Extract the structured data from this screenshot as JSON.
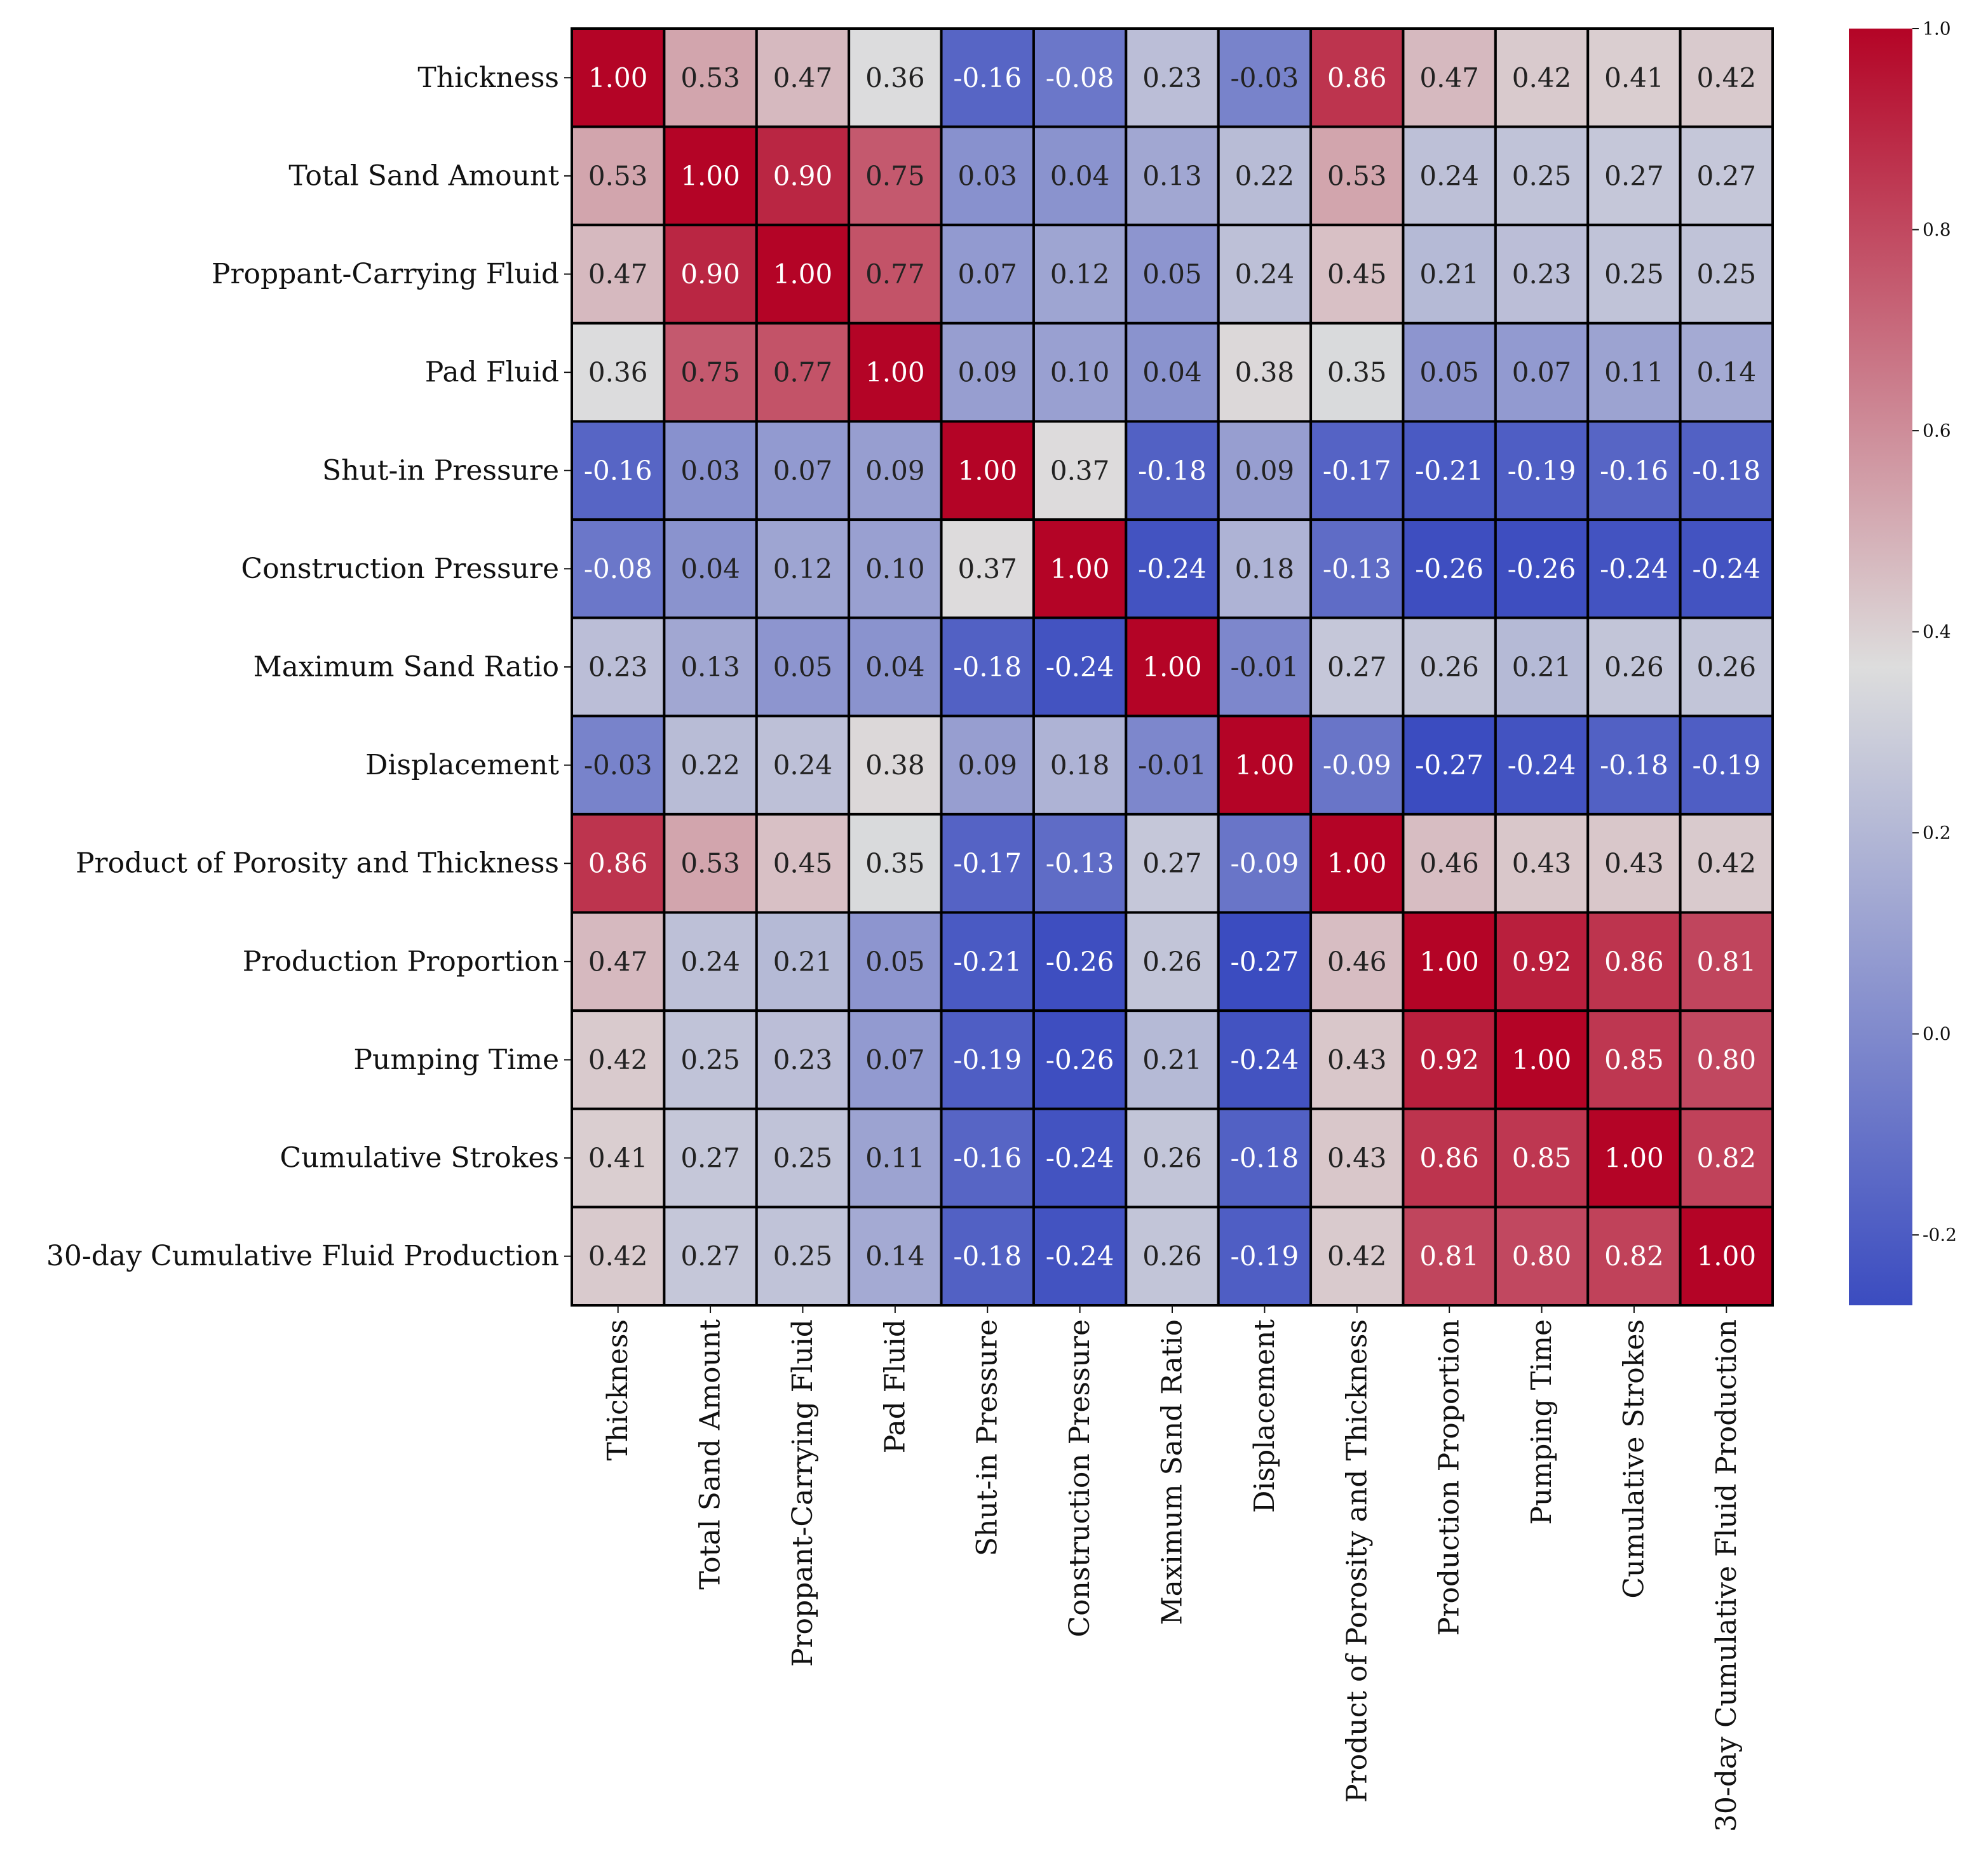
{
  "chart_data": {
    "type": "heatmap",
    "title": "",
    "xlabel": "",
    "ylabel": "",
    "value_format": "2 decimals",
    "colormap": "coolwarm",
    "color_low": "#3b4cc0",
    "color_mid": "#dddddd",
    "color_high": "#b40426",
    "grid_line_color": "#000000",
    "vmin": -0.27,
    "vmax": 1.0,
    "labels": [
      "Thickness",
      "Total Sand Amount",
      "Proppant-Carrying Fluid",
      "Pad Fluid",
      "Shut-in Pressure",
      "Construction Pressure",
      "Maximum Sand Ratio",
      "Displacement",
      "Product of Porosity and Thickness",
      "Production Proportion",
      "Pumping Time",
      "Cumulative Strokes",
      "30-day Cumulative Fluid Production"
    ],
    "matrix": [
      [
        1.0,
        0.53,
        0.47,
        0.36,
        -0.16,
        -0.08,
        0.23,
        -0.03,
        0.86,
        0.47,
        0.42,
        0.41,
        0.42
      ],
      [
        0.53,
        1.0,
        0.9,
        0.75,
        0.03,
        0.04,
        0.13,
        0.22,
        0.53,
        0.24,
        0.25,
        0.27,
        0.27
      ],
      [
        0.47,
        0.9,
        1.0,
        0.77,
        0.07,
        0.12,
        0.05,
        0.24,
        0.45,
        0.21,
        0.23,
        0.25,
        0.25
      ],
      [
        0.36,
        0.75,
        0.77,
        1.0,
        0.09,
        0.1,
        0.04,
        0.38,
        0.35,
        0.05,
        0.07,
        0.11,
        0.14
      ],
      [
        -0.16,
        0.03,
        0.07,
        0.09,
        1.0,
        0.37,
        -0.18,
        0.09,
        -0.17,
        -0.21,
        -0.19,
        -0.16,
        -0.18
      ],
      [
        -0.08,
        0.04,
        0.12,
        0.1,
        0.37,
        1.0,
        -0.24,
        0.18,
        -0.13,
        -0.26,
        -0.26,
        -0.24,
        -0.24
      ],
      [
        0.23,
        0.13,
        0.05,
        0.04,
        -0.18,
        -0.24,
        1.0,
        -0.01,
        0.27,
        0.26,
        0.21,
        0.26,
        0.26
      ],
      [
        -0.03,
        0.22,
        0.24,
        0.38,
        0.09,
        0.18,
        -0.01,
        1.0,
        -0.09,
        -0.27,
        -0.24,
        -0.18,
        -0.19
      ],
      [
        0.86,
        0.53,
        0.45,
        0.35,
        -0.17,
        -0.13,
        0.27,
        -0.09,
        1.0,
        0.46,
        0.43,
        0.43,
        0.42
      ],
      [
        0.47,
        0.24,
        0.21,
        0.05,
        -0.21,
        -0.26,
        0.26,
        -0.27,
        0.46,
        1.0,
        0.92,
        0.86,
        0.81
      ],
      [
        0.42,
        0.25,
        0.23,
        0.07,
        -0.19,
        -0.26,
        0.21,
        -0.24,
        0.43,
        0.92,
        1.0,
        0.85,
        0.8
      ],
      [
        0.41,
        0.27,
        0.25,
        0.11,
        -0.16,
        -0.24,
        0.26,
        -0.18,
        0.43,
        0.86,
        0.85,
        1.0,
        0.82
      ],
      [
        0.42,
        0.27,
        0.25,
        0.14,
        -0.18,
        -0.24,
        0.26,
        -0.19,
        0.42,
        0.81,
        0.8,
        0.82,
        1.0
      ]
    ],
    "colorbar": {
      "ticks": [
        1.0,
        0.8,
        0.6,
        0.4,
        0.2,
        0.0,
        -0.2
      ],
      "tick_labels": [
        "1.0",
        "0.8",
        "0.6",
        "0.4",
        "0.2",
        "0.0",
        "-0.2"
      ]
    }
  }
}
